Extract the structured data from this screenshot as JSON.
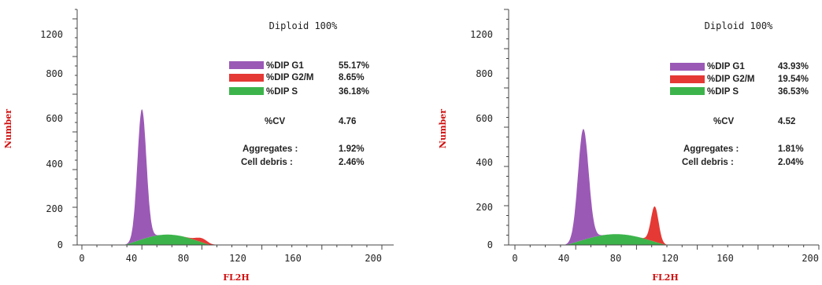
{
  "chart_data": [
    {
      "type": "area",
      "title": "Diploid 100%",
      "xlabel": "FL2H",
      "ylabel": "Number",
      "xlim": [
        0,
        210
      ],
      "ylim": [
        0,
        1300
      ],
      "x_ticks": [
        "0",
        "40",
        "80",
        "120",
        "160",
        "200"
      ],
      "y_ticks": [
        "0",
        "200",
        "400",
        "600",
        "800",
        "1200"
      ],
      "colors": {
        "g1": "#9b59b6",
        "g2m": "#e53935",
        "s": "#3cb44b"
      },
      "series": [
        {
          "name": "%DIP G1",
          "percent": "55.17%",
          "peak_x": 40,
          "peak_y": 690,
          "sigma": 3.0
        },
        {
          "name": "%DIP G2/M",
          "percent": "8.65%",
          "peak_x": 80,
          "peak_y": 22,
          "sigma": 4.0
        },
        {
          "name": "%DIP S",
          "percent": "36.18%",
          "x_range": [
            28,
            86
          ],
          "peak_y": 55
        }
      ],
      "stats": [
        {
          "label": "%CV",
          "value": "4.76"
        },
        {
          "label": "Aggregates :",
          "value": "1.92%"
        },
        {
          "label": "Cell debris :",
          "value": "2.46%"
        }
      ]
    },
    {
      "type": "area",
      "title": "Diploid 100%",
      "xlabel": "FL2H",
      "ylabel": "Number",
      "xlim": [
        0,
        210
      ],
      "ylim": [
        0,
        1300
      ],
      "x_ticks": [
        "0",
        "40",
        "80",
        "120",
        "160",
        "200"
      ],
      "y_ticks": [
        "0",
        "200",
        "400",
        "600",
        "800",
        "1200"
      ],
      "colors": {
        "g1": "#9b59b6",
        "g2m": "#e53935",
        "s": "#3cb44b"
      },
      "series": [
        {
          "name": "%DIP G1",
          "percent": "43.93%",
          "peak_x": 45,
          "peak_y": 565,
          "sigma": 3.5
        },
        {
          "name": "%DIP G2/M",
          "percent": "19.54%",
          "peak_x": 92,
          "peak_y": 180,
          "sigma": 2.5
        },
        {
          "name": "%DIP S",
          "percent": "36.53%",
          "x_range": [
            33,
            100
          ],
          "peak_y": 55
        }
      ],
      "stats": [
        {
          "label": "%CV",
          "value": "4.52"
        },
        {
          "label": "Aggregates :",
          "value": "1.81%"
        },
        {
          "label": "Cell debris :",
          "value": "2.04%"
        }
      ]
    }
  ]
}
